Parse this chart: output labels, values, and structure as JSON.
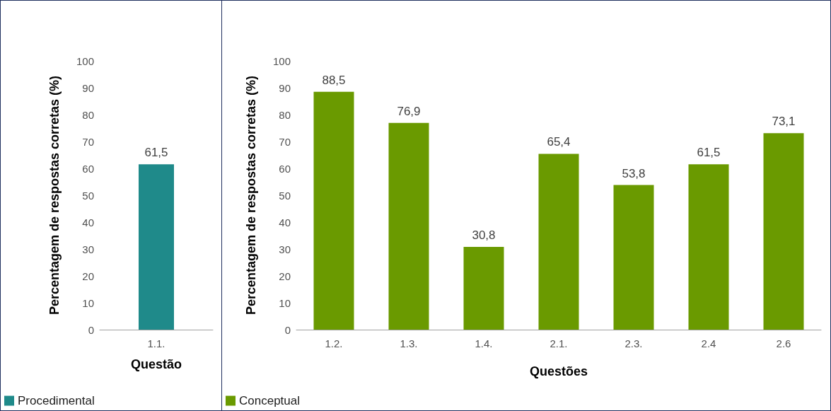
{
  "chart_data": [
    {
      "type": "bar",
      "categories": [
        "1.1."
      ],
      "series": [
        {
          "name": "Procedimental",
          "color": "#1f8a8a",
          "values": [
            61.5
          ],
          "value_labels": [
            "61,5"
          ]
        }
      ],
      "xlabel": "Questão",
      "ylabel": "Percentagem de respostas corretas (%)",
      "ylim": [
        0,
        100
      ],
      "yticks": [
        0,
        10,
        20,
        30,
        40,
        50,
        60,
        70,
        80,
        90,
        100
      ],
      "grid": false,
      "legend": "bottom left"
    },
    {
      "type": "bar",
      "categories": [
        "1.2.",
        "1.3.",
        "1.4.",
        "2.1.",
        "2.3.",
        "2.4",
        "2.6"
      ],
      "series": [
        {
          "name": "Conceptual",
          "color": "#6a9a00",
          "values": [
            88.5,
            76.9,
            30.8,
            65.4,
            53.8,
            61.5,
            73.1
          ],
          "value_labels": [
            "88,5",
            "76,9",
            "30,8",
            "65,4",
            "53,8",
            "61,5",
            "73,1"
          ]
        }
      ],
      "xlabel": "Questões",
      "ylabel": "Percentagem de respostas corretas (%)",
      "ylim": [
        0,
        100
      ],
      "yticks": [
        0,
        10,
        20,
        30,
        40,
        50,
        60,
        70,
        80,
        90,
        100
      ],
      "grid": false,
      "legend": "bottom left"
    }
  ]
}
